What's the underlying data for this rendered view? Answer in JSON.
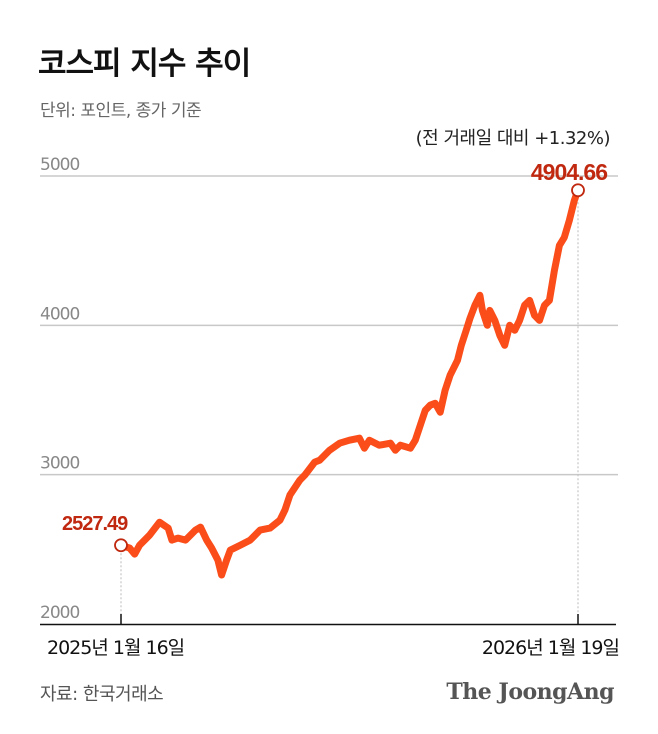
{
  "header": {
    "title": "코스피 지수 추이",
    "unit": "단위: 포인트, 종가 기준",
    "note": "(전 거래일 대비 +1.32%)"
  },
  "footer": {
    "source": "자료: 한국거래소",
    "logo": "The JoongAng"
  },
  "colors": {
    "line": "#fa4d1a",
    "label": "#c0280f",
    "grid": "#c8c8c8",
    "axis": "#111111"
  },
  "chart_data": {
    "type": "line",
    "title": "코스피 지수 추이",
    "ylim": [
      2000,
      5000
    ],
    "yticks": [
      "2000",
      "3000",
      "4000",
      "5000"
    ],
    "xticks": [
      "2025년 1월 16일",
      "2026년 1월 19일"
    ],
    "grid": true,
    "start_label": "2527.49",
    "end_label": "4904.66",
    "series": [
      {
        "x": [
          "2025-01-16",
          "2025-01-23",
          "2025-01-27",
          "2025-01-31",
          "2025-02-08",
          "2025-02-16",
          "2025-02-23",
          "2025-02-26",
          "2025-03-03",
          "2025-03-09",
          "2025-03-17",
          "2025-03-21",
          "2025-03-26",
          "2025-03-30",
          "2025-04-04",
          "2025-04-07",
          "2025-04-11",
          "2025-04-14",
          "2025-04-22",
          "2025-04-30",
          "2025-05-08",
          "2025-05-16",
          "2025-05-24",
          "2025-05-28",
          "2025-06-01",
          "2025-06-09",
          "2025-06-13",
          "2025-06-21",
          "2025-06-25",
          "2025-07-03",
          "2025-07-11",
          "2025-07-19",
          "2025-07-27",
          "2025-07-31",
          "2025-08-04",
          "2025-08-12",
          "2025-08-21",
          "2025-08-25",
          "2025-08-29",
          "2025-09-06",
          "2025-09-10",
          "2025-09-14",
          "2025-09-18",
          "2025-09-22",
          "2025-09-26",
          "2025-09-30",
          "2025-10-04",
          "2025-10-08",
          "2025-10-14",
          "2025-10-17",
          "2025-10-21",
          "2025-10-24",
          "2025-10-28",
          "2025-11-01",
          "2025-11-03",
          "2025-11-07",
          "2025-11-09",
          "2025-11-13",
          "2025-11-17",
          "2025-11-21",
          "2025-11-25",
          "2025-11-29",
          "2025-12-03",
          "2025-12-07",
          "2025-12-11",
          "2025-12-15",
          "2025-12-19",
          "2025-12-23",
          "2025-12-27",
          "2025-12-31",
          "2026-01-04",
          "2026-01-08",
          "2026-01-12",
          "2026-01-16",
          "2026-01-19"
        ],
        "values": [
          2527.49,
          2508,
          2468,
          2528,
          2595,
          2682,
          2642,
          2562,
          2575,
          2562,
          2629,
          2649,
          2562,
          2508,
          2428,
          2328,
          2428,
          2495,
          2528,
          2562,
          2629,
          2642,
          2696,
          2763,
          2863,
          2963,
          2997,
          3084,
          3097,
          3164,
          3211,
          3231,
          3244,
          3177,
          3231,
          3197,
          3211,
          3164,
          3197,
          3177,
          3231,
          3331,
          3431,
          3465,
          3478,
          3418,
          3565,
          3666,
          3766,
          3866,
          3967,
          4047,
          4134,
          4201,
          4100,
          4000,
          4100,
          4033,
          3933,
          3866,
          4000,
          3967,
          4033,
          4134,
          4167,
          4067,
          4033,
          4134,
          4167,
          4368,
          4535,
          4589,
          4702,
          4836,
          4904.66
        ]
      }
    ]
  }
}
